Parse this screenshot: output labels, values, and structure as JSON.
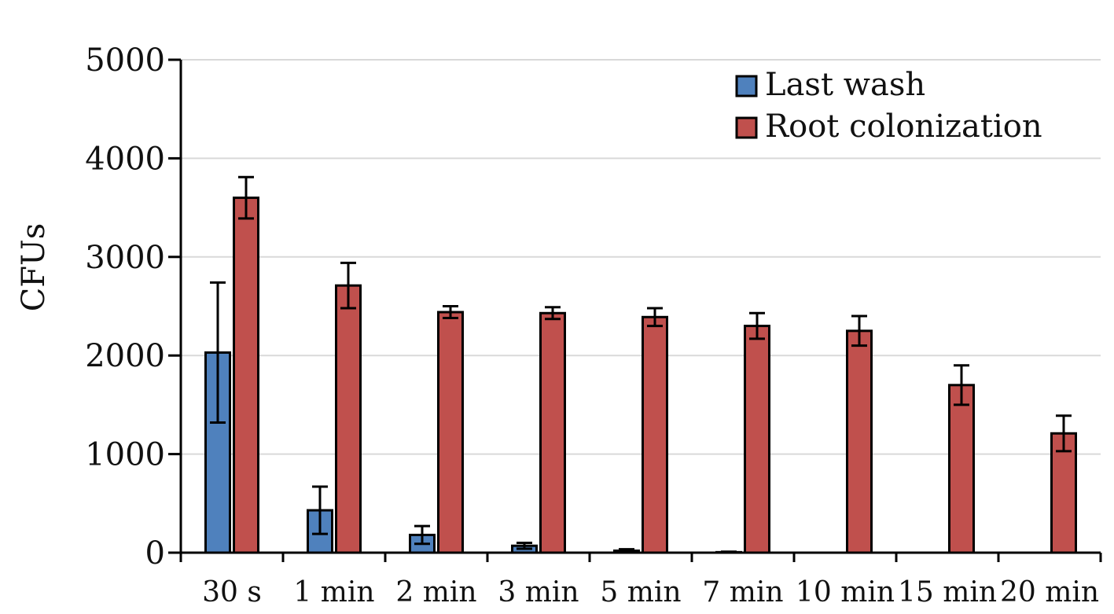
{
  "chart_data": {
    "type": "bar",
    "title": "",
    "xlabel": "",
    "ylabel": "CFUs",
    "ylim": [
      0,
      5000
    ],
    "yticks": [
      0,
      1000,
      2000,
      3000,
      4000,
      5000
    ],
    "grid": true,
    "legend_position": "top-right",
    "categories": [
      "30 s",
      "1 min",
      "2 min",
      "3 min",
      "5 min",
      "7 min",
      "10 min",
      "15 min",
      "20 min"
    ],
    "series": [
      {
        "name": "Last wash",
        "color": "#4f81bd",
        "values": [
          2030,
          430,
          180,
          70,
          20,
          5,
          0,
          0,
          0
        ],
        "errors": [
          710,
          240,
          90,
          30,
          15,
          5,
          0,
          0,
          0
        ]
      },
      {
        "name": "Root colonization",
        "color": "#c0504d",
        "values": [
          3600,
          2710,
          2440,
          2430,
          2390,
          2300,
          2250,
          1700,
          1210
        ],
        "errors": [
          210,
          230,
          60,
          60,
          90,
          130,
          150,
          200,
          180
        ]
      }
    ]
  }
}
